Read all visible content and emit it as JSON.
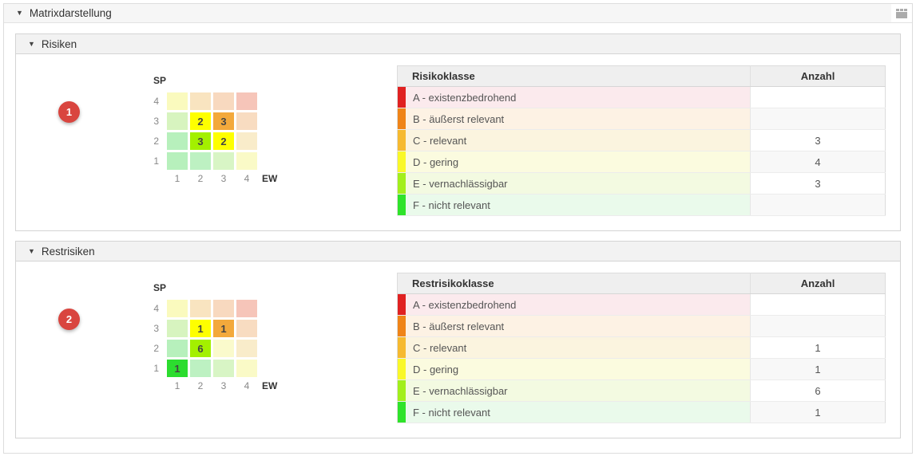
{
  "window": {
    "title": "Matrixdarstellung",
    "collapse_glyph": "▼",
    "toolbar_icon": "table-icon"
  },
  "colors": {
    "badge_red": "#d9453f",
    "class_A": "#e02121",
    "class_B": "#ef8418",
    "class_C": "#f6ba30",
    "class_D": "#f9f829",
    "class_E": "#a2ef1c",
    "class_F": "#2fe32a"
  },
  "sections": [
    {
      "title": "Risiken",
      "badge": "1",
      "matrix": {
        "y_label": "SP",
        "x_label": "EW",
        "row_labels": [
          "4",
          "3",
          "2",
          "1"
        ],
        "col_labels": [
          "1",
          "2",
          "3",
          "4"
        ],
        "rows": [
          [
            {
              "v": "",
              "c": "#fafabe"
            },
            {
              "v": "",
              "c": "#f9e4c0"
            },
            {
              "v": "",
              "c": "#f8d9bf"
            },
            {
              "v": "",
              "c": "#f6c5b9"
            }
          ],
          [
            {
              "v": "",
              "c": "#d7f4bf"
            },
            {
              "v": "2",
              "c": "#feff00"
            },
            {
              "v": "3",
              "c": "#f3a93c"
            },
            {
              "v": "",
              "c": "#f8dcc1"
            }
          ],
          [
            {
              "v": "",
              "c": "#b7f0bc"
            },
            {
              "v": "3",
              "c": "#a3f000"
            },
            {
              "v": "2",
              "c": "#feff00"
            },
            {
              "v": "",
              "c": "#f9ecca"
            }
          ],
          [
            {
              "v": "",
              "c": "#b7f0bc"
            },
            {
              "v": "",
              "c": "#bdf1c2"
            },
            {
              "v": "",
              "c": "#d8f5c5"
            },
            {
              "v": "",
              "c": "#fafac7"
            }
          ]
        ]
      },
      "table": {
        "class_header": "Risikoklasse",
        "count_header": "Anzahl",
        "rows": [
          {
            "label": "A - existenzbedrohend",
            "count": "",
            "bar": "#e02121",
            "tint": "#fbeaed"
          },
          {
            "label": "B - äußerst relevant",
            "count": "",
            "bar": "#ef8418",
            "tint": "#fdf2e4"
          },
          {
            "label": "C - relevant",
            "count": "3",
            "bar": "#f6ba30",
            "tint": "#fbf4df"
          },
          {
            "label": "D - gering",
            "count": "4",
            "bar": "#f9f829",
            "tint": "#fbfbdf"
          },
          {
            "label": "E - vernachlässigbar",
            "count": "3",
            "bar": "#a2ef1c",
            "tint": "#f3fae1"
          },
          {
            "label": "F - nicht relevant",
            "count": "",
            "bar": "#2fe32a",
            "tint": "#eafaeb"
          }
        ]
      }
    },
    {
      "title": "Restrisiken",
      "badge": "2",
      "matrix": {
        "y_label": "SP",
        "x_label": "EW",
        "row_labels": [
          "4",
          "3",
          "2",
          "1"
        ],
        "col_labels": [
          "1",
          "2",
          "3",
          "4"
        ],
        "rows": [
          [
            {
              "v": "",
              "c": "#fafabe"
            },
            {
              "v": "",
              "c": "#f9e4c0"
            },
            {
              "v": "",
              "c": "#f8d9bf"
            },
            {
              "v": "",
              "c": "#f6c5b9"
            }
          ],
          [
            {
              "v": "",
              "c": "#d7f4bf"
            },
            {
              "v": "1",
              "c": "#feff00"
            },
            {
              "v": "1",
              "c": "#f3a93c"
            },
            {
              "v": "",
              "c": "#f8dcc1"
            }
          ],
          [
            {
              "v": "",
              "c": "#b7f0bc"
            },
            {
              "v": "6",
              "c": "#a3f000"
            },
            {
              "v": "",
              "c": "#fafacc"
            },
            {
              "v": "",
              "c": "#f9ecca"
            }
          ],
          [
            {
              "v": "1",
              "c": "#2cdc2f"
            },
            {
              "v": "",
              "c": "#bdf1c2"
            },
            {
              "v": "",
              "c": "#d8f5c5"
            },
            {
              "v": "",
              "c": "#fafac7"
            }
          ]
        ]
      },
      "table": {
        "class_header": "Restrisikoklasse",
        "count_header": "Anzahl",
        "rows": [
          {
            "label": "A - existenzbedrohend",
            "count": "",
            "bar": "#e02121",
            "tint": "#fbeaed"
          },
          {
            "label": "B - äußerst relevant",
            "count": "",
            "bar": "#ef8418",
            "tint": "#fdf2e4"
          },
          {
            "label": "C - relevant",
            "count": "1",
            "bar": "#f6ba30",
            "tint": "#fbf4df"
          },
          {
            "label": "D - gering",
            "count": "1",
            "bar": "#f9f829",
            "tint": "#fbfbdf"
          },
          {
            "label": "E - vernachlässigbar",
            "count": "6",
            "bar": "#a2ef1c",
            "tint": "#f3fae1"
          },
          {
            "label": "F - nicht relevant",
            "count": "1",
            "bar": "#2fe32a",
            "tint": "#eafaeb"
          }
        ]
      }
    }
  ],
  "chart_data": [
    {
      "type": "heatmap",
      "title": "Risiken",
      "xlabel": "EW",
      "ylabel": "SP",
      "x_ticks": [
        1,
        2,
        3,
        4
      ],
      "y_ticks": [
        1,
        2,
        3,
        4
      ],
      "cells": [
        {
          "ew": 2,
          "sp": 3,
          "value": 2
        },
        {
          "ew": 3,
          "sp": 3,
          "value": 3
        },
        {
          "ew": 2,
          "sp": 2,
          "value": 3
        },
        {
          "ew": 3,
          "sp": 2,
          "value": 2
        }
      ],
      "class_counts": [
        {
          "class": "A - existenzbedrohend",
          "count": null
        },
        {
          "class": "B - äußerst relevant",
          "count": null
        },
        {
          "class": "C - relevant",
          "count": 3
        },
        {
          "class": "D - gering",
          "count": 4
        },
        {
          "class": "E - vernachlässigbar",
          "count": 3
        },
        {
          "class": "F - nicht relevant",
          "count": null
        }
      ]
    },
    {
      "type": "heatmap",
      "title": "Restrisiken",
      "xlabel": "EW",
      "ylabel": "SP",
      "x_ticks": [
        1,
        2,
        3,
        4
      ],
      "y_ticks": [
        1,
        2,
        3,
        4
      ],
      "cells": [
        {
          "ew": 2,
          "sp": 3,
          "value": 1
        },
        {
          "ew": 3,
          "sp": 3,
          "value": 1
        },
        {
          "ew": 2,
          "sp": 2,
          "value": 6
        },
        {
          "ew": 1,
          "sp": 1,
          "value": 1
        }
      ],
      "class_counts": [
        {
          "class": "A - existenzbedrohend",
          "count": null
        },
        {
          "class": "B - äußerst relevant",
          "count": null
        },
        {
          "class": "C - relevant",
          "count": 1
        },
        {
          "class": "D - gering",
          "count": 1
        },
        {
          "class": "E - vernachlässigbar",
          "count": 6
        },
        {
          "class": "F - nicht relevant",
          "count": 1
        }
      ]
    }
  ]
}
